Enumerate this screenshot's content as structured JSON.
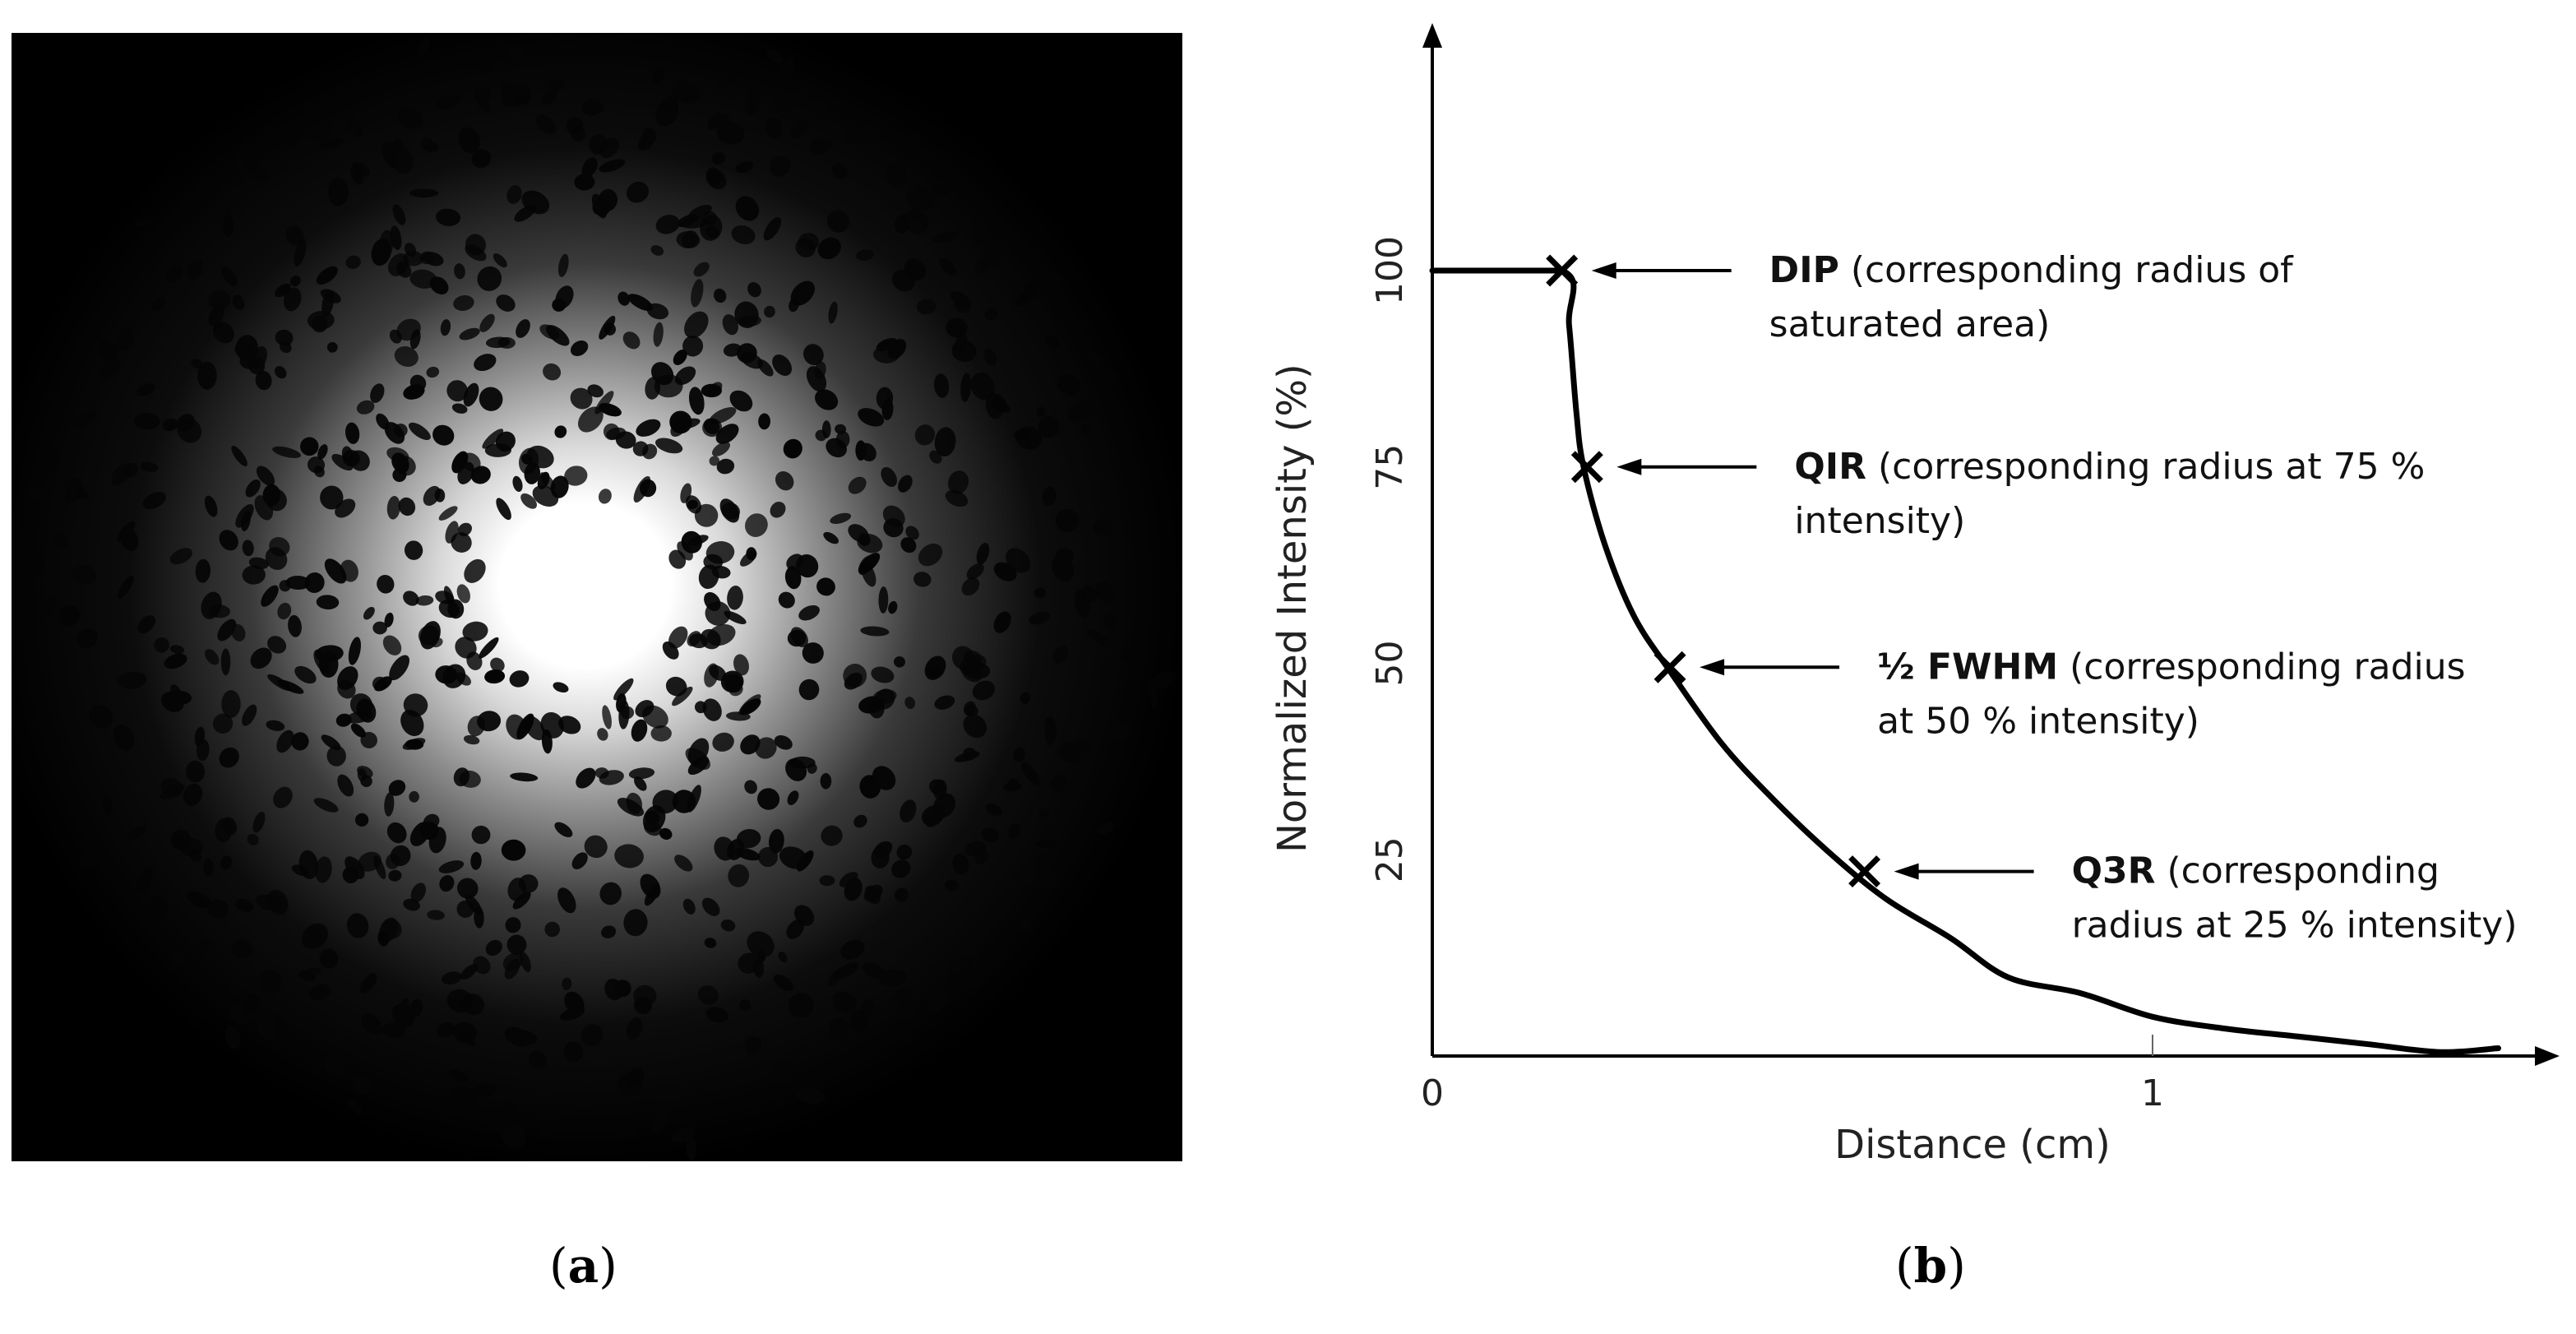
{
  "panel_a": {
    "caption_letter": "a"
  },
  "panel_b": {
    "caption_letter": "b"
  },
  "chart_data": {
    "type": "line",
    "xlabel": "Distance (cm)",
    "ylabel": "Normalized Intensity (%)",
    "xlim": [
      0,
      1.55
    ],
    "ylim": [
      0,
      125
    ],
    "x_ticks": [
      0,
      1
    ],
    "y_ticks": [
      25,
      50,
      75,
      100
    ],
    "grid": false,
    "series": [
      {
        "x": [
          0,
          0.18,
          0.19,
          0.2,
          0.21,
          0.24,
          0.28,
          0.33,
          0.4,
          0.47,
          0.55,
          0.63,
          0.72,
          0.8,
          0.9,
          1.0,
          1.1,
          1.2,
          1.3,
          1.4,
          1.48
        ],
        "y": [
          100,
          100,
          93,
          82,
          75,
          65,
          56,
          49,
          40,
          33,
          26,
          20,
          15,
          10,
          8,
          5,
          3.5,
          2.5,
          1.5,
          0.5,
          1
        ]
      }
    ],
    "markers": [
      {
        "x": 0.18,
        "y": 100
      },
      {
        "x": 0.215,
        "y": 75
      },
      {
        "x": 0.33,
        "y": 49.5
      },
      {
        "x": 0.6,
        "y": 23.5
      }
    ],
    "annotations": [
      {
        "bold": "DIP",
        "line1": " (corresponding radius of",
        "line2": "saturated area)"
      },
      {
        "bold": "QIR",
        "line1": " (corresponding radius at 75 %",
        "line2": "intensity)"
      },
      {
        "bold": "½ FWHM",
        "line1": " (corresponding radius",
        "line2": "at 50 % intensity)"
      },
      {
        "bold": "Q3R",
        "line1": " (corresponding",
        "line2": "radius at 25 % intensity)"
      }
    ]
  }
}
